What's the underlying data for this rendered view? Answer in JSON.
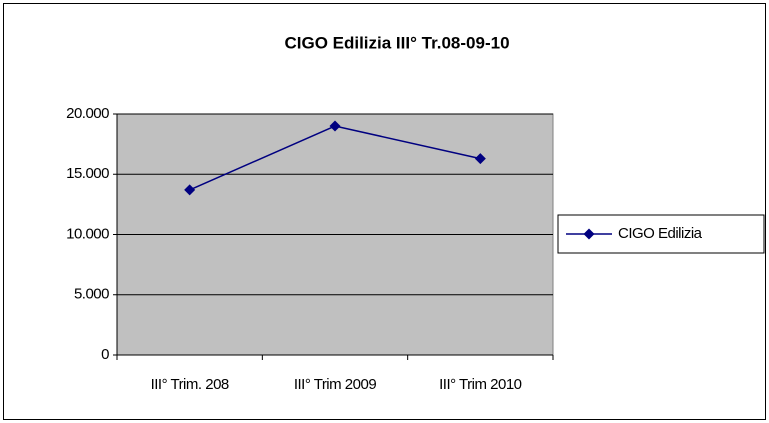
{
  "chart_data": {
    "type": "line",
    "title": "CIGO Edilizia III° Tr.08-09-10",
    "categories": [
      "III° Trim. 208",
      "III° Trim 2009",
      "III° Trim 2010"
    ],
    "series": [
      {
        "name": "CIGO Edilizia",
        "color": "#000080",
        "values": [
          13700,
          19000,
          16300
        ]
      }
    ],
    "ylim": [
      0,
      20000
    ],
    "yticks": [
      {
        "value": 0,
        "label": "0"
      },
      {
        "value": 5000,
        "label": "5.000"
      },
      {
        "value": 10000,
        "label": "10.000"
      },
      {
        "value": 15000,
        "label": "15.000"
      },
      {
        "value": 20000,
        "label": "20.000"
      }
    ],
    "grid": true,
    "legend": "right"
  }
}
